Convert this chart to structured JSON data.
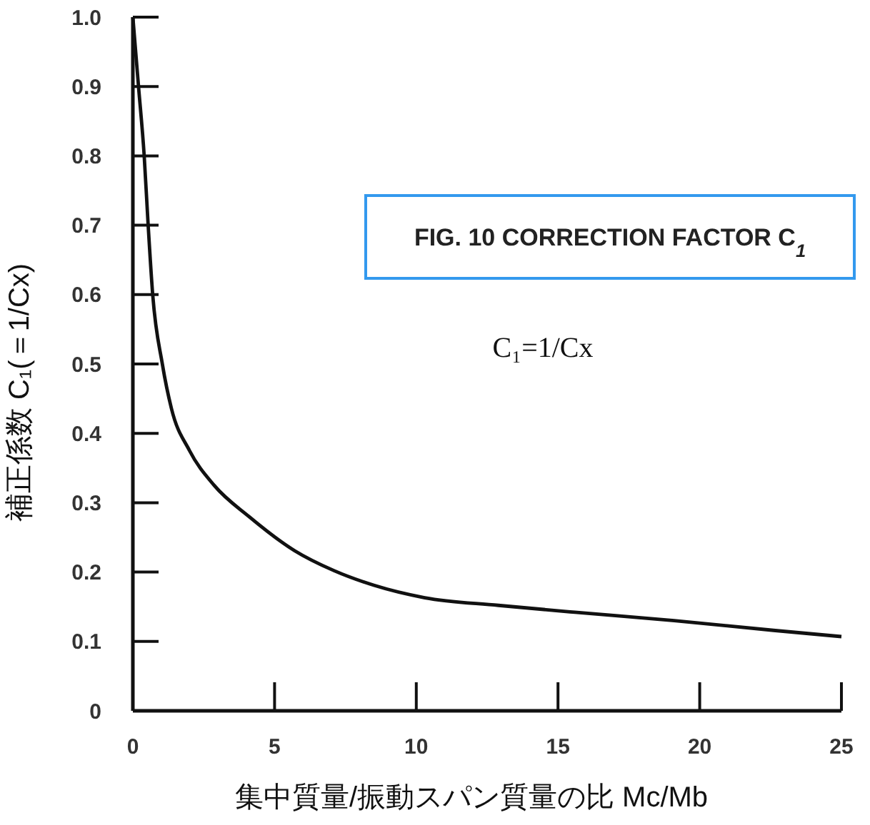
{
  "chart_data": {
    "type": "line",
    "title": "FIG. 10  CORRECTION FACTOR C$_{1}$",
    "xlabel": "集中質量/振動スパン質量の比 Mc/Mb",
    "ylabel": "補正係数 C₁(＝1/Cx)",
    "annotations": [
      "C₁=1/Cx"
    ],
    "series": [
      {
        "color": "#111111",
        "x": [
          0,
          0.2,
          0.4,
          0.54,
          0.7,
          1.04,
          1.36,
          2.0,
          2.87,
          4.1,
          5.7,
          7.1,
          8.5,
          10.3,
          12.9,
          15.6,
          19.1,
          22.6,
          25
        ],
        "values": [
          1.0,
          0.9,
          0.8,
          0.7,
          0.6,
          0.5,
          0.436,
          0.375,
          0.325,
          0.28,
          0.231,
          0.202,
          0.181,
          0.163,
          0.152,
          0.142,
          0.13,
          0.116,
          0.107
        ]
      }
    ],
    "xlim": [
      0,
      25
    ],
    "ylim": [
      0,
      1
    ],
    "xticks": [
      0,
      5,
      10,
      15,
      20,
      25
    ],
    "yticks": [
      0,
      0.1,
      0.2,
      0.3,
      0.4,
      0.5,
      0.6,
      0.7,
      0.8,
      0.9,
      {
        "value": 1,
        "label": "1.0"
      }
    ],
    "grid": false,
    "line_style": "solid",
    "marker": "none"
  }
}
